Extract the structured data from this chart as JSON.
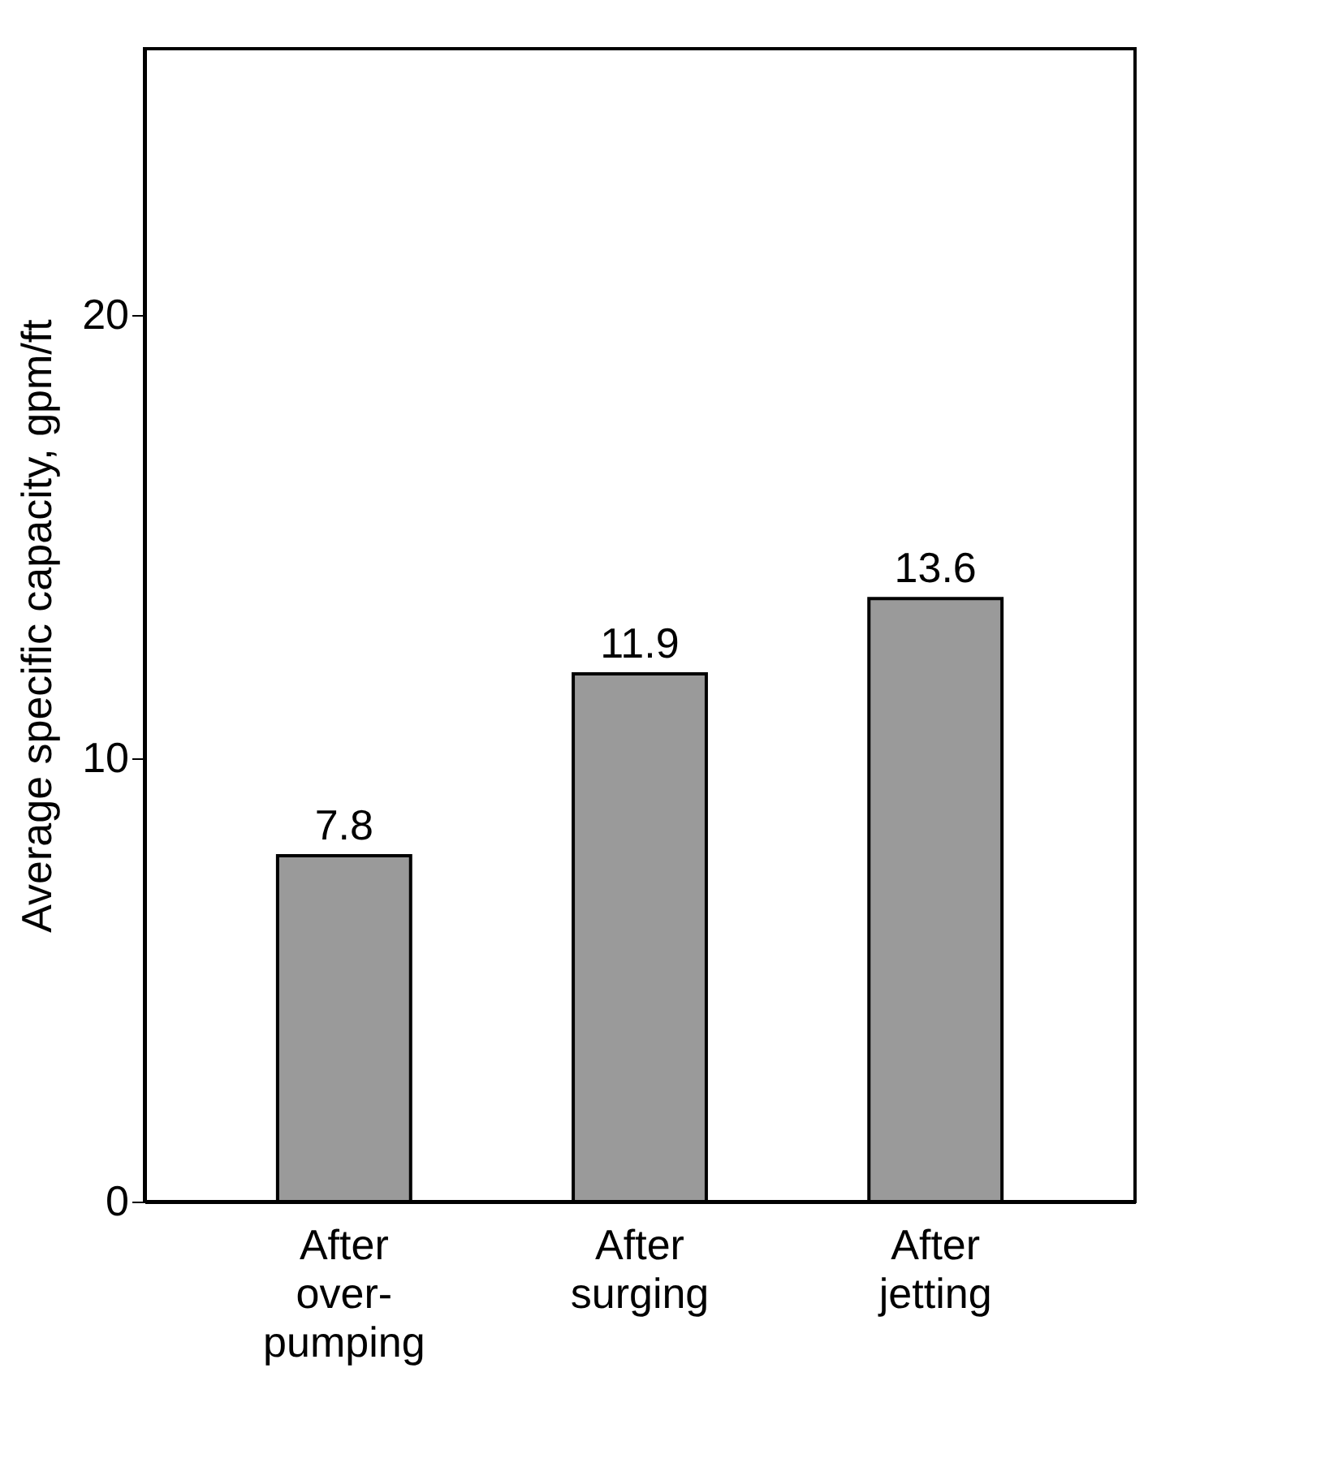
{
  "chart_data": {
    "type": "bar",
    "ylabel": "Average specific capacity, gpm/ft",
    "categories": [
      "After\nover-\npumping",
      "After\nsurging",
      "After\njetting"
    ],
    "values": [
      7.8,
      11.9,
      13.6
    ],
    "color": "#9a9a9a",
    "ylim": [
      0,
      26
    ],
    "yticks": [
      0,
      10,
      20
    ],
    "grid": false,
    "data_labels": true
  }
}
